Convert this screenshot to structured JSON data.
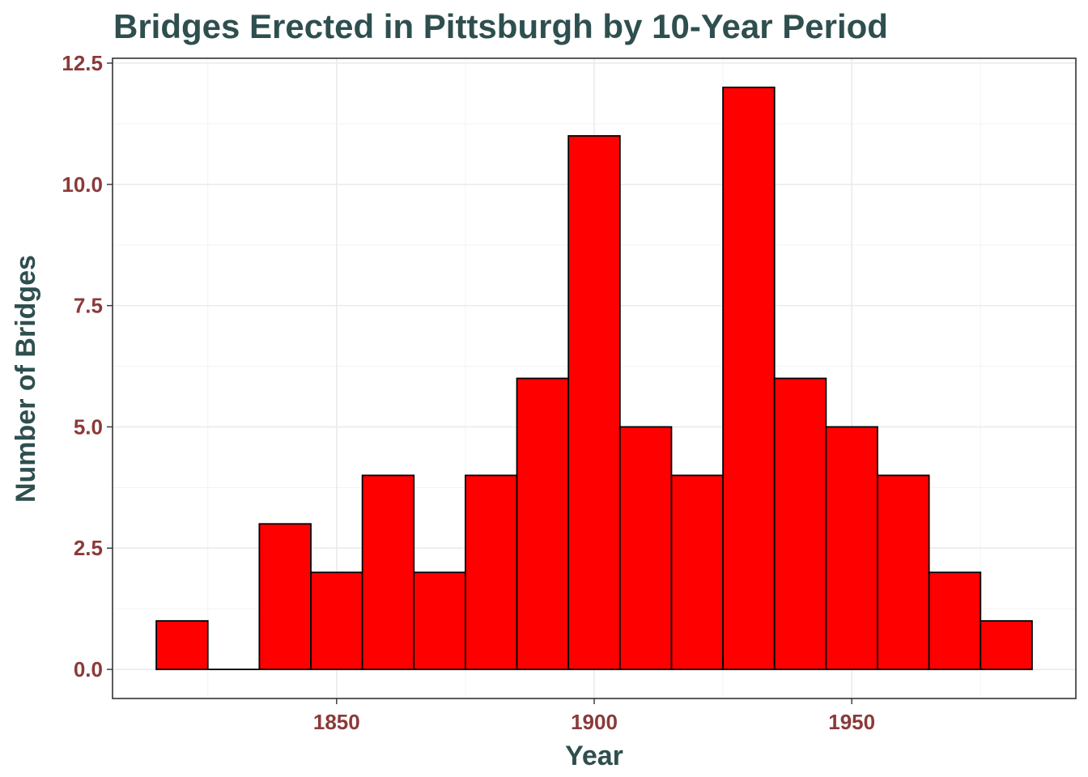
{
  "chart_data": {
    "type": "bar",
    "title": "Bridges Erected in Pittsburgh by 10-Year Period",
    "xlabel": "Year",
    "ylabel": "Number of Bridges",
    "bin_width": 10,
    "bins": [
      {
        "center": 1820,
        "count": 1
      },
      {
        "center": 1830,
        "count": 0
      },
      {
        "center": 1840,
        "count": 3
      },
      {
        "center": 1850,
        "count": 2
      },
      {
        "center": 1860,
        "count": 4
      },
      {
        "center": 1870,
        "count": 2
      },
      {
        "center": 1880,
        "count": 4
      },
      {
        "center": 1890,
        "count": 6
      },
      {
        "center": 1900,
        "count": 11
      },
      {
        "center": 1910,
        "count": 5
      },
      {
        "center": 1920,
        "count": 4
      },
      {
        "center": 1930,
        "count": 12
      },
      {
        "center": 1940,
        "count": 6
      },
      {
        "center": 1950,
        "count": 5
      },
      {
        "center": 1960,
        "count": 4
      },
      {
        "center": 1970,
        "count": 2
      },
      {
        "center": 1980,
        "count": 1
      }
    ],
    "x_ticks": [
      {
        "value": 1850,
        "label": "1850"
      },
      {
        "value": 1900,
        "label": "1900"
      },
      {
        "value": 1950,
        "label": "1950"
      }
    ],
    "y_ticks": [
      {
        "value": 0,
        "label": "0.0"
      },
      {
        "value": 2.5,
        "label": "2.5"
      },
      {
        "value": 5,
        "label": "5.0"
      },
      {
        "value": 7.5,
        "label": "7.5"
      },
      {
        "value": 10,
        "label": "10.0"
      },
      {
        "value": 12.5,
        "label": "12.5"
      }
    ],
    "xlim": [
      1806.5,
      1993.5
    ],
    "ylim": [
      -0.6,
      12.6
    ],
    "grid": true,
    "colors": {
      "bar_fill": "#ff0000",
      "bar_outline": "#000000",
      "title": "#2f4f4f",
      "tick_labels": "#8b3a3a"
    }
  }
}
